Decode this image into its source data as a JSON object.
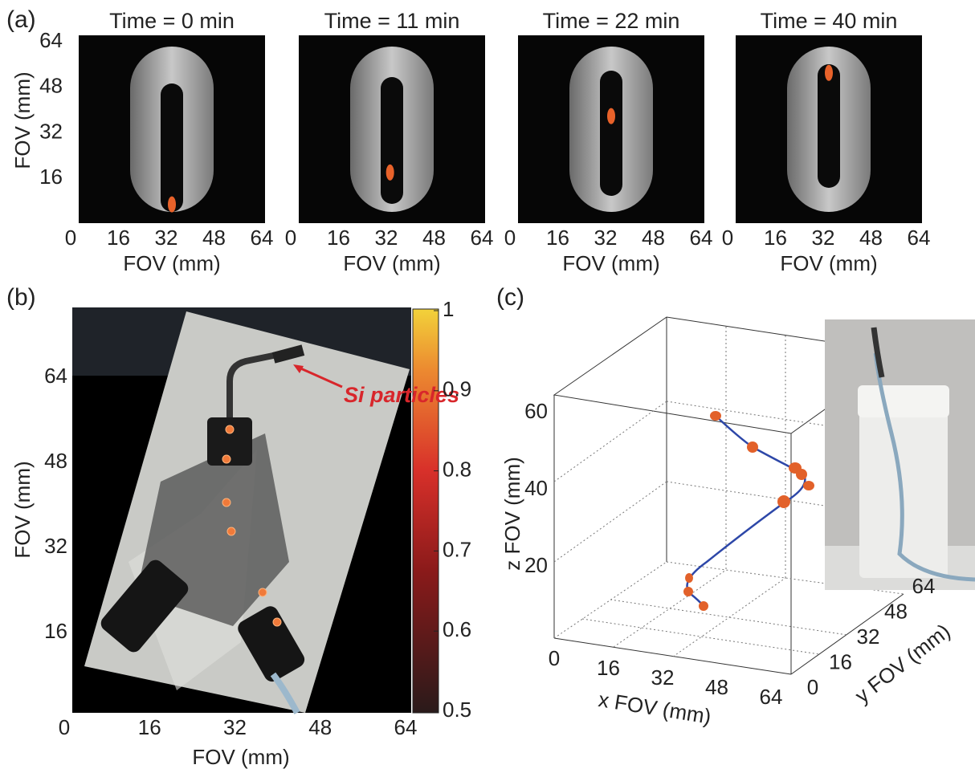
{
  "panels": {
    "a": {
      "label": "(a)",
      "frames": [
        {
          "title": "Time = 0 min"
        },
        {
          "title": "Time = 11 min"
        },
        {
          "title": "Time = 22 min"
        },
        {
          "title": "Time = 40 min"
        }
      ],
      "xlabel": "FOV (mm)",
      "ylabel": "FOV (mm)",
      "xticks": [
        0,
        16,
        32,
        48,
        64
      ],
      "yticks": [
        16,
        32,
        48,
        64
      ]
    },
    "b": {
      "label": "(b)",
      "annotation": "Si particles",
      "xlabel": "FOV (mm)",
      "ylabel": "FOV (mm)",
      "xticks": [
        0,
        16,
        32,
        48,
        64
      ],
      "yticks": [
        16,
        32,
        48,
        64
      ],
      "colorbar_ticks": [
        0.5,
        0.6,
        0.7,
        0.8,
        0.9,
        1
      ]
    },
    "c": {
      "label": "(c)",
      "xlabel": "x FOV (mm)",
      "ylabel": "y FOV (mm)",
      "zlabel": "z FOV (mm)",
      "xticks": [
        0,
        16,
        32,
        48,
        64
      ],
      "yticks": [
        0,
        16,
        32,
        48,
        64
      ],
      "zticks": [
        20,
        40,
        60
      ]
    }
  }
}
